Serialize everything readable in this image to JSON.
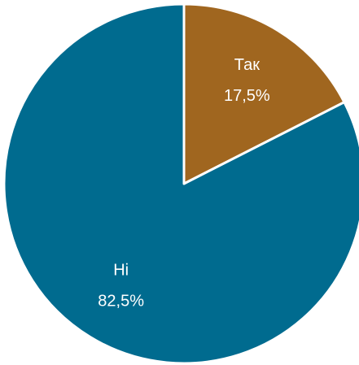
{
  "chart_data": {
    "type": "pie",
    "categories": [
      "Так",
      "Ні"
    ],
    "values": [
      17.5,
      82.5
    ],
    "value_labels": [
      "17,5%",
      "82,5%"
    ],
    "colors": [
      "#a0661f",
      "#006b8f"
    ]
  }
}
